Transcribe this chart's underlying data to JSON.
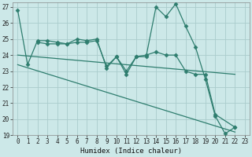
{
  "xlabel": "Humidex (Indice chaleur)",
  "xlim": [
    -0.5,
    23.5
  ],
  "ylim": [
    19,
    27.3
  ],
  "yticks": [
    19,
    20,
    21,
    22,
    23,
    24,
    25,
    26,
    27
  ],
  "xticks": [
    0,
    1,
    2,
    3,
    4,
    5,
    6,
    7,
    8,
    9,
    10,
    11,
    12,
    13,
    14,
    15,
    16,
    17,
    18,
    19,
    20,
    21,
    22,
    23
  ],
  "bg_color": "#cce8e8",
  "grid_color": "#aacccc",
  "line_color": "#2e7d6e",
  "series": [
    {
      "x": [
        0,
        1,
        2,
        3,
        4,
        5,
        6,
        7,
        8,
        9,
        10,
        11,
        12,
        13,
        14,
        15,
        16,
        17,
        18,
        19,
        20,
        21,
        22
      ],
      "y": [
        26.8,
        23.4,
        24.9,
        24.9,
        24.8,
        24.7,
        25.0,
        24.9,
        25.0,
        23.2,
        23.9,
        23.0,
        23.9,
        23.9,
        27.0,
        26.4,
        27.2,
        25.8,
        24.5,
        22.5,
        20.2,
        19.1,
        19.5
      ],
      "marker": "D",
      "markersize": 2.5,
      "lw": 0.9
    },
    {
      "x": [
        2,
        3,
        4,
        5,
        6,
        7,
        8,
        9,
        10,
        11,
        12,
        13,
        14,
        15,
        16,
        17,
        18,
        19,
        20,
        22
      ],
      "y": [
        24.8,
        24.7,
        24.7,
        24.7,
        24.8,
        24.8,
        24.9,
        23.3,
        23.9,
        22.8,
        23.9,
        24.0,
        24.2,
        24.0,
        24.0,
        23.0,
        22.8,
        22.8,
        20.3,
        19.5
      ],
      "marker": "D",
      "markersize": 2.5,
      "lw": 0.9
    },
    {
      "x": [
        0,
        22
      ],
      "y": [
        23.4,
        19.2
      ],
      "marker": null,
      "markersize": 0,
      "lw": 0.9
    },
    {
      "x": [
        0,
        22
      ],
      "y": [
        24.0,
        22.8
      ],
      "marker": null,
      "markersize": 0,
      "lw": 0.9
    }
  ]
}
